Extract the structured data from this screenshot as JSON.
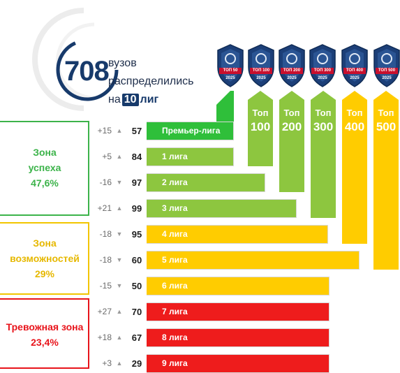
{
  "headline": {
    "number": "708",
    "line1": "вузов",
    "line2": "распределились",
    "line3_prefix": "на",
    "line3_number": "10",
    "line3_suffix": "лиг"
  },
  "badges": [
    {
      "label": "ТОП 50",
      "year": "2025"
    },
    {
      "label": "ТОП 100",
      "year": "2025"
    },
    {
      "label": "ТОП 200",
      "year": "2025"
    },
    {
      "label": "ТОП 300",
      "year": "2025"
    },
    {
      "label": "ТОП 400",
      "year": "2025"
    },
    {
      "label": "ТОП 500",
      "year": "2025"
    }
  ],
  "columns": [
    {
      "line1": "Топ",
      "line2": "100",
      "color": "#8dc63f"
    },
    {
      "line1": "Топ",
      "line2": "200",
      "color": "#8dc63f"
    },
    {
      "line1": "Топ",
      "line2": "300",
      "color": "#8dc63f"
    },
    {
      "line1": "Топ",
      "line2": "400",
      "color": "#ffcc00"
    },
    {
      "line1": "Топ",
      "line2": "500",
      "color": "#ffcc00"
    }
  ],
  "zones": [
    {
      "line1": "Зона",
      "line2": "успеха",
      "line3": "47,6%",
      "color": "#3cb34a"
    },
    {
      "line1": "Зона",
      "line2": "возможностей",
      "line3": "29%",
      "color": "#e6b800"
    },
    {
      "line1": "Тревожная зона",
      "line2": "23,4%",
      "color": "#e8141b"
    }
  ],
  "rows": [
    {
      "delta": "+15",
      "trend": "up",
      "count": "57",
      "label": "Премьер-лига",
      "color": "#2fbf3a"
    },
    {
      "delta": "+5",
      "trend": "up",
      "count": "84",
      "label": "1 лига",
      "color": "#8dc63f"
    },
    {
      "delta": "-16",
      "trend": "down",
      "count": "97",
      "label": "2 лига",
      "color": "#8dc63f"
    },
    {
      "delta": "+21",
      "trend": "up",
      "count": "99",
      "label": "3 лига",
      "color": "#8dc63f"
    },
    {
      "delta": "-18",
      "trend": "down",
      "count": "95",
      "label": "4 лига",
      "color": "#ffcc00"
    },
    {
      "delta": "-18",
      "trend": "down",
      "count": "60",
      "label": "5 лига",
      "color": "#ffcc00"
    },
    {
      "delta": "-15",
      "trend": "down",
      "count": "50",
      "label": "6 лига",
      "color": "#ffcc00"
    },
    {
      "delta": "+27",
      "trend": "up",
      "count": "70",
      "label": "7 лига",
      "color": "#ee1c1c"
    },
    {
      "delta": "+18",
      "trend": "up",
      "count": "67",
      "label": "8 лига",
      "color": "#ee1c1c"
    },
    {
      "delta": "+3",
      "trend": "up",
      "count": "29",
      "label": "9 лига",
      "color": "#ee1c1c"
    }
  ]
}
